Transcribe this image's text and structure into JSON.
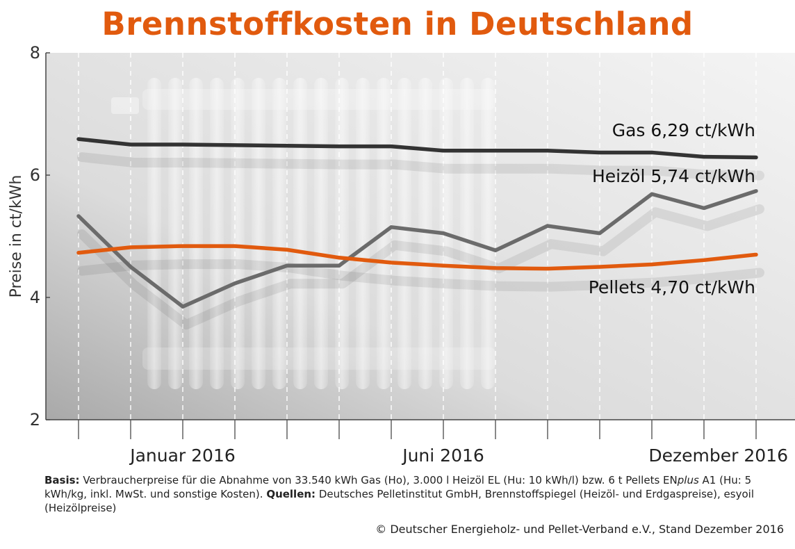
{
  "colors": {
    "title": "#e15a0e",
    "gas": "#333333",
    "heizoel": "#6b6b6b",
    "pellets": "#e15a0e",
    "text": "#222222"
  },
  "chart_data": {
    "type": "line",
    "title": "Brennstoffkosten in Deutschland",
    "xlabel": "",
    "ylabel": "Preise in ct/kWh",
    "ylim": [
      2,
      8
    ],
    "yticks": [
      "2",
      "4",
      "6",
      "8"
    ],
    "x_labels": [
      "Januar 2016",
      "Juni 2016",
      "Dezember 2016"
    ],
    "x_label_index": [
      2,
      7,
      13
    ],
    "points_count": 14,
    "series": [
      {
        "name": "Gas",
        "label_name": "Gas",
        "label_value": "6,29 ct/kWh",
        "color": "#333333",
        "values": [
          6.59,
          6.5,
          6.5,
          6.49,
          6.48,
          6.47,
          6.47,
          6.4,
          6.4,
          6.4,
          6.37,
          6.37,
          6.3,
          6.29
        ]
      },
      {
        "name": "Heizöl",
        "label_name": "Heizöl",
        "label_value": "5,74 ct/kWh",
        "color": "#6b6b6b",
        "values": [
          5.33,
          4.5,
          3.85,
          4.23,
          4.52,
          4.52,
          5.15,
          5.05,
          4.77,
          5.17,
          5.05,
          5.69,
          5.46,
          5.74
        ]
      },
      {
        "name": "Pellets",
        "label_name": "Pellets",
        "label_value": "4,70 ct/kWh",
        "color": "#e15a0e",
        "values": [
          4.73,
          4.82,
          4.84,
          4.84,
          4.78,
          4.65,
          4.57,
          4.52,
          4.48,
          4.47,
          4.5,
          4.54,
          4.61,
          4.7
        ]
      }
    ]
  },
  "footer": {
    "basis_label": "Basis:",
    "basis_text_1": " Verbraucherpreise für die Abnahme von 33.540 kWh Gas (Ho), 3.000 l Heizöl EL (Hu: 10 kWh/l) bzw. 6 t Pellets EN",
    "basis_italic": "plus",
    "basis_text_2": " A1 (Hu: 5 kWh/kg, inkl. MwSt. und sonstige Kosten). ",
    "sources_label": "Quellen:",
    "sources_text": " Deutsches Pelletinstitut GmbH, Brennstoffspiegel (Heizöl- und Erdgaspreise), esyoil (Heizölpreise)",
    "copyright": "© Deutscher Energieholz- und Pellet-Verband e.V., Stand Dezember 2016"
  }
}
